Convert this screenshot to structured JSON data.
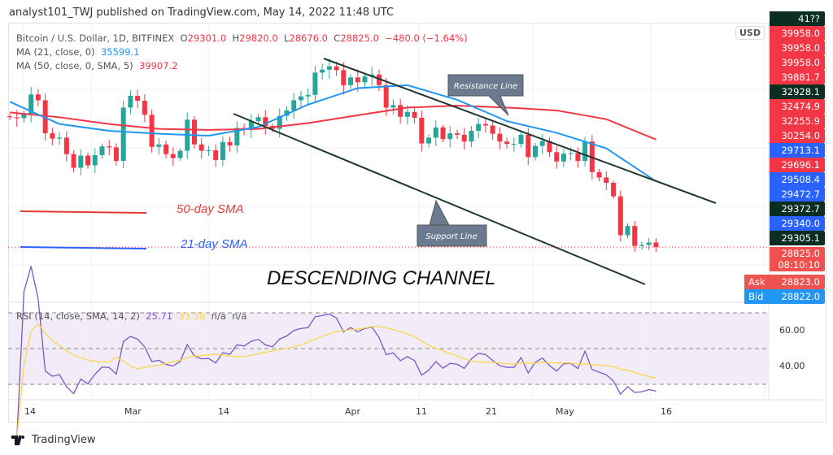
{
  "header": {
    "published": "analyst101_TWJ published on TradingView.com, May 14, 2022 11:48 UTC"
  },
  "legend": {
    "symbol": "Bitcoin / U.S. Dollar, 1D, BITFINEX",
    "o_label": "O",
    "o": "29301.0",
    "h_label": "H",
    "h": "29820.0",
    "l_label": "L",
    "l": "28676.0",
    "c_label": "C",
    "c": "28825.0",
    "change": "−480.0 (−1.64%)",
    "ma21_label": "MA (21, close, 0)",
    "ma21_value": "35599.1",
    "ma50_label": "MA (50, close, 0, SMA, 5)",
    "ma50_value": "39907.2",
    "rsi_label": "RSI (14, close, SMA, 14, 2)",
    "rsi_value": "25.71",
    "rsi_ma_value": "33.58",
    "rsi_na1": "n/a",
    "rsi_na2": "n/a"
  },
  "annotations": {
    "resistance": "Resistance Line",
    "support": "Support Line",
    "sma50": "50-day SMA",
    "sma21": "21-day SMA",
    "channel": "DESCENDING CHANNEL"
  },
  "price_axis": {
    "currency": "USD",
    "labels": [
      {
        "text": "41??",
        "color": "#0b2e22"
      },
      {
        "text": "39958.0",
        "color": "#f23645"
      },
      {
        "text": "39958.0",
        "color": "#f23645"
      },
      {
        "text": "39958.0",
        "color": "#f23645"
      },
      {
        "text": "39881.7",
        "color": "#f23645"
      },
      {
        "text": "32928.1",
        "color": "#0b2e22"
      },
      {
        "text": "32474.9",
        "color": "#f23645"
      },
      {
        "text": "32255.9",
        "color": "#f23645"
      },
      {
        "text": "30254.0",
        "color": "#f23645"
      },
      {
        "text": "29713.1",
        "color": "#2962ff"
      },
      {
        "text": "29696.1",
        "color": "#f23645"
      },
      {
        "text": "29508.4",
        "color": "#2962ff"
      },
      {
        "text": "29472.7",
        "color": "#2962ff"
      },
      {
        "text": "29372.7",
        "color": "#0b2e22"
      },
      {
        "text": "29340.0",
        "color": "#2962ff"
      },
      {
        "text": "29305.1",
        "color": "#0b2e22"
      }
    ],
    "last": "28825.0",
    "countdown": "08:10:10",
    "ask_label": "Ask",
    "ask": "28823.0",
    "bid_label": "Bid",
    "bid": "28822.0"
  },
  "rsi_axis": [
    "60.00",
    "40.00"
  ],
  "time_axis": [
    "14",
    "Mar",
    "14",
    "Apr",
    "11",
    "21",
    "May",
    "16"
  ],
  "footer": {
    "brand": "TradingView"
  },
  "colors": {
    "up": "#26a69a",
    "down": "#f23645",
    "ma21": "#2196f3",
    "ma50": "#f23645",
    "rsi": "#7e57c2",
    "rsi_ma": "#f9d74c",
    "channel": "#1e3a2f"
  },
  "chart_data": {
    "type": "candlestick",
    "start_date": "2022-02-12",
    "end_date": "2022-05-14",
    "interval": "1D",
    "closes": [
      42200,
      42100,
      42550,
      44550,
      43950,
      40550,
      40000,
      40100,
      38400,
      37000,
      38250,
      37250,
      38300,
      39200,
      39100,
      37700,
      43200,
      44400,
      43900,
      42450,
      39150,
      39400,
      38400,
      38000,
      38750,
      41950,
      39400,
      38750,
      38800,
      37800,
      39650,
      39300,
      41100,
      40900,
      41800,
      42200,
      41300,
      41000,
      42350,
      42900,
      43950,
      44350,
      44500,
      46800,
      47100,
      47450,
      47050,
      45500,
      46300,
      45800,
      46400,
      46600,
      45500,
      43200,
      43450,
      42250,
      42750,
      42150,
      39500,
      40100,
      41150,
      39950,
      40550,
      40400,
      39700,
      40800,
      41500,
      41350,
      40500,
      39700,
      39450,
      39450,
      40400,
      38100,
      39250,
      39750,
      38600,
      37650,
      38450,
      38500,
      37700,
      39700,
      36550,
      36000,
      35450,
      34050,
      30050,
      31000,
      28950,
      29050,
      29301,
      28825
    ],
    "ma21_weekly": [
      43800,
      41500,
      40800,
      40500,
      40300,
      41200,
      43500,
      45200,
      45500,
      44000,
      41800,
      40600,
      39000,
      35599.1
    ],
    "ma50_weekly": [
      42700,
      42200,
      41500,
      41000,
      40900,
      41000,
      41600,
      42400,
      43200,
      43400,
      43200,
      42900,
      42000,
      39907.2
    ],
    "rsi_levels": [
      70,
      50,
      30
    ],
    "ylim": [
      24000,
      50000
    ]
  }
}
